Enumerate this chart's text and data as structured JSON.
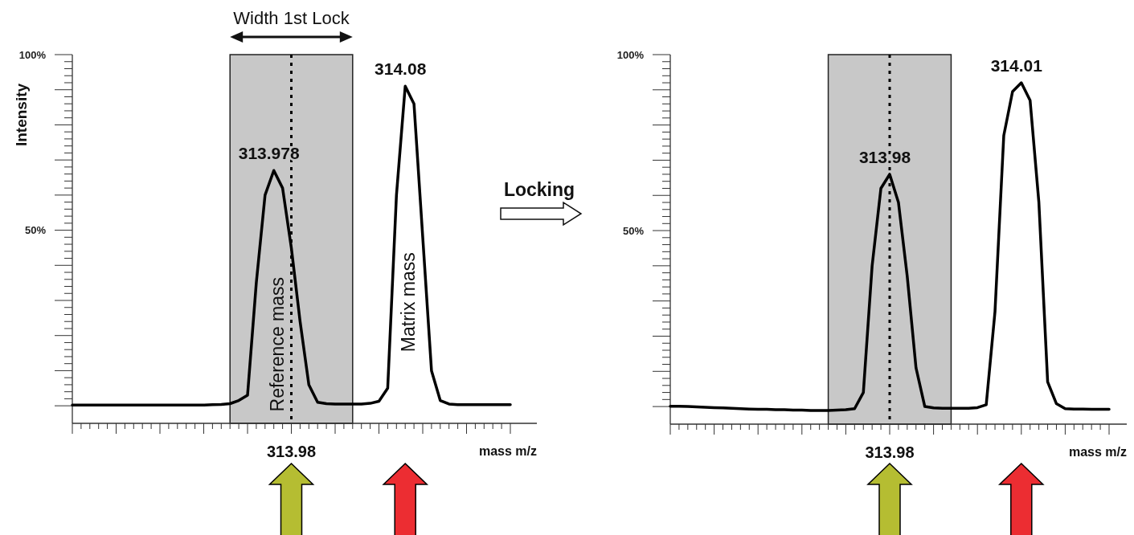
{
  "chart_data": [
    {
      "type": "line",
      "ylabel": "Intensity",
      "xlabel": "mass m/z",
      "ylim": [
        -5,
        100
      ],
      "categories": [
        null,
        null,
        null,
        null,
        null,
        null,
        null,
        null,
        null,
        null,
        null,
        null,
        null,
        null,
        null,
        null,
        null,
        null,
        null,
        null,
        null,
        null,
        null,
        null,
        null,
        "313.98",
        null,
        null,
        null,
        null,
        null,
        null,
        null,
        null,
        null,
        null,
        null,
        null,
        null,
        null,
        null,
        null,
        null,
        null,
        null,
        null,
        null,
        null,
        null,
        null,
        null
      ],
      "yticks": [
        {
          "value": 0,
          "label": null
        },
        {
          "value": 2,
          "label": null
        },
        {
          "value": 4,
          "label": null
        },
        {
          "value": 6,
          "label": null
        },
        {
          "value": 8,
          "label": null
        },
        {
          "value": 10,
          "label": null
        },
        {
          "value": 12,
          "label": null
        },
        {
          "value": 14,
          "label": null
        },
        {
          "value": 16,
          "label": null
        },
        {
          "value": 18,
          "label": null
        },
        {
          "value": 20,
          "label": null
        },
        {
          "value": 22,
          "label": null
        },
        {
          "value": 24,
          "label": null
        },
        {
          "value": 26,
          "label": null
        },
        {
          "value": 28,
          "label": null
        },
        {
          "value": 30,
          "label": null
        },
        {
          "value": 32,
          "label": null
        },
        {
          "value": 34,
          "label": null
        },
        {
          "value": 36,
          "label": null
        },
        {
          "value": 38,
          "label": null
        },
        {
          "value": 40,
          "label": null
        },
        {
          "value": 42,
          "label": null
        },
        {
          "value": 44,
          "label": null
        },
        {
          "value": 46,
          "label": null
        },
        {
          "value": 48,
          "label": null
        },
        {
          "value": 50,
          "label": "50%"
        },
        {
          "value": 52,
          "label": null
        },
        {
          "value": 54,
          "label": null
        },
        {
          "value": 56,
          "label": null
        },
        {
          "value": 58,
          "label": null
        },
        {
          "value": 60,
          "label": null
        },
        {
          "value": 62,
          "label": null
        },
        {
          "value": 64,
          "label": null
        },
        {
          "value": 66,
          "label": null
        },
        {
          "value": 68,
          "label": null
        },
        {
          "value": 70,
          "label": null
        },
        {
          "value": 72,
          "label": null
        },
        {
          "value": 74,
          "label": null
        },
        {
          "value": 76,
          "label": null
        },
        {
          "value": 78,
          "label": null
        },
        {
          "value": 80,
          "label": null
        },
        {
          "value": 82,
          "label": null
        },
        {
          "value": 84,
          "label": null
        },
        {
          "value": 86,
          "label": null
        },
        {
          "value": 88,
          "label": null
        },
        {
          "value": 90,
          "label": null
        },
        {
          "value": 92,
          "label": null
        },
        {
          "value": 94,
          "label": null
        },
        {
          "value": 96,
          "label": null
        },
        {
          "value": 98,
          "label": null
        },
        {
          "value": 100,
          "label": "100%"
        }
      ],
      "series": [
        {
          "color": "#000000",
          "values": [
            0.2,
            0.2,
            0.2,
            0.2,
            0.2,
            0.2,
            0.2,
            0.2,
            0.2,
            0.2,
            0.2,
            0.2,
            0.2,
            0.2,
            0.2,
            0.2,
            0.3,
            0.4,
            0.6,
            1.5,
            3,
            35,
            60,
            67,
            62,
            45,
            24,
            6,
            1,
            0.6,
            0.5,
            0.5,
            0.5,
            0.5,
            0.7,
            1.3,
            5,
            60,
            91,
            86,
            48,
            10,
            1.5,
            0.5,
            0.3,
            0.3,
            0.3,
            0.3,
            0.3,
            0.3,
            0.3
          ]
        }
      ],
      "annotations": [
        "313.978",
        "314.08",
        "Reference mass",
        "Matrix mass",
        "Width 1st Lock",
        "Locking"
      ]
    },
    {
      "type": "line",
      "xlabel": "mass m/z",
      "ylim": [
        -5,
        100
      ],
      "categories": [
        null,
        null,
        null,
        null,
        null,
        null,
        null,
        null,
        null,
        null,
        null,
        null,
        null,
        null,
        null,
        null,
        null,
        null,
        null,
        null,
        null,
        null,
        null,
        null,
        null,
        "313.98",
        null,
        null,
        null,
        null,
        null,
        null,
        null,
        null,
        null,
        null,
        null,
        null,
        null,
        null,
        null,
        null,
        null,
        null,
        null,
        null,
        null,
        null,
        null,
        null,
        null
      ],
      "yticks": [
        {
          "value": 0,
          "label": null
        },
        {
          "value": 2,
          "label": null
        },
        {
          "value": 4,
          "label": null
        },
        {
          "value": 6,
          "label": null
        },
        {
          "value": 8,
          "label": null
        },
        {
          "value": 10,
          "label": null
        },
        {
          "value": 12,
          "label": null
        },
        {
          "value": 14,
          "label": null
        },
        {
          "value": 16,
          "label": null
        },
        {
          "value": 18,
          "label": null
        },
        {
          "value": 20,
          "label": null
        },
        {
          "value": 22,
          "label": null
        },
        {
          "value": 24,
          "label": null
        },
        {
          "value": 26,
          "label": null
        },
        {
          "value": 28,
          "label": null
        },
        {
          "value": 30,
          "label": null
        },
        {
          "value": 32,
          "label": null
        },
        {
          "value": 34,
          "label": null
        },
        {
          "value": 36,
          "label": null
        },
        {
          "value": 38,
          "label": null
        },
        {
          "value": 40,
          "label": null
        },
        {
          "value": 42,
          "label": null
        },
        {
          "value": 44,
          "label": null
        },
        {
          "value": 46,
          "label": null
        },
        {
          "value": 48,
          "label": null
        },
        {
          "value": 50,
          "label": "50%"
        },
        {
          "value": 52,
          "label": null
        },
        {
          "value": 54,
          "label": null
        },
        {
          "value": 56,
          "label": null
        },
        {
          "value": 58,
          "label": null
        },
        {
          "value": 60,
          "label": null
        },
        {
          "value": 62,
          "label": null
        },
        {
          "value": 64,
          "label": null
        },
        {
          "value": 66,
          "label": null
        },
        {
          "value": 68,
          "label": null
        },
        {
          "value": 70,
          "label": null
        },
        {
          "value": 72,
          "label": null
        },
        {
          "value": 74,
          "label": null
        },
        {
          "value": 76,
          "label": null
        },
        {
          "value": 78,
          "label": null
        },
        {
          "value": 80,
          "label": null
        },
        {
          "value": 82,
          "label": null
        },
        {
          "value": 84,
          "label": null
        },
        {
          "value": 86,
          "label": null
        },
        {
          "value": 88,
          "label": null
        },
        {
          "value": 90,
          "label": null
        },
        {
          "value": 92,
          "label": null
        },
        {
          "value": 94,
          "label": null
        },
        {
          "value": 96,
          "label": null
        },
        {
          "value": 98,
          "label": null
        },
        {
          "value": 100,
          "label": "100%"
        }
      ],
      "series": [
        {
          "color": "#000000",
          "values": [
            0.1,
            0.1,
            0,
            -0.1,
            -0.2,
            -0.3,
            -0.4,
            -0.5,
            -0.6,
            -0.7,
            -0.8,
            -0.8,
            -0.9,
            -0.9,
            -1,
            -1,
            -1.1,
            -1.1,
            -1.1,
            -1,
            -0.9,
            -0.6,
            4,
            40,
            62,
            66,
            58,
            37,
            11,
            0,
            -0.4,
            -0.5,
            -0.5,
            -0.5,
            -0.5,
            -0.3,
            0.5,
            27,
            77,
            89.5,
            92,
            87,
            58,
            7,
            0.8,
            -0.6,
            -0.7,
            -0.7,
            -0.8,
            -0.8,
            -0.8
          ]
        }
      ],
      "annotations": [
        "313.98",
        "314.01"
      ]
    }
  ]
}
